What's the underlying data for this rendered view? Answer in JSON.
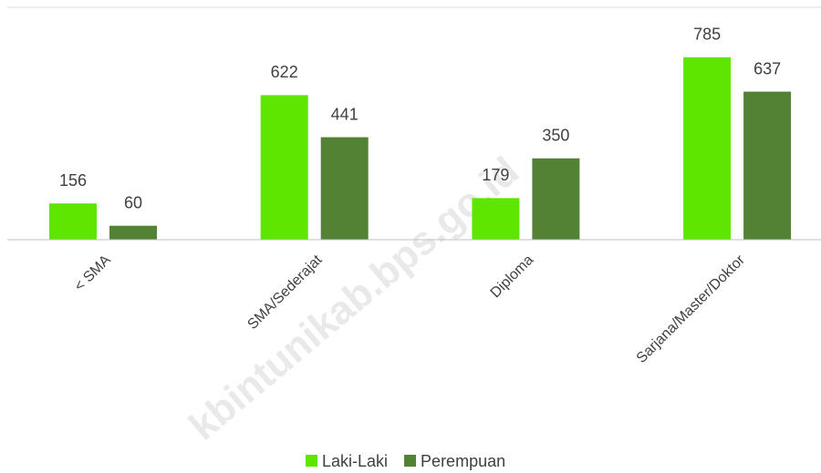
{
  "chart_data": {
    "type": "bar",
    "categories": [
      "< SMA",
      "SMA/Sederajat",
      "Diploma",
      "Sarjana/Master/Doktor"
    ],
    "series": [
      {
        "name": "Laki-Laki",
        "color": "#5ee600",
        "values": [
          156,
          622,
          179,
          785
        ]
      },
      {
        "name": "Perempuan",
        "color": "#548235",
        "values": [
          60,
          441,
          350,
          637
        ]
      }
    ],
    "ylim": [
      0,
      1000
    ],
    "watermark": "kbintunikab.bps.go.id"
  }
}
